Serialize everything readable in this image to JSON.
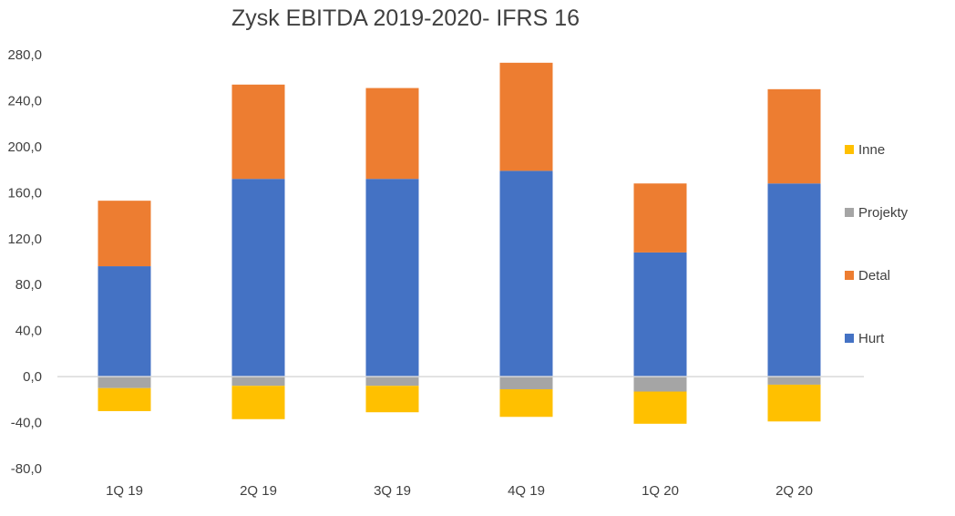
{
  "chart_data": {
    "type": "bar",
    "stacked": true,
    "title": "Zysk EBITDA 2019-2020- IFRS 16",
    "categories": [
      "1Q 19",
      "2Q 19",
      "3Q 19",
      "4Q 19",
      "1Q 20",
      "2Q 20"
    ],
    "series": [
      {
        "name": "Hurt",
        "color": "#4472C4",
        "values": [
          96,
          172,
          172,
          179,
          108,
          168
        ]
      },
      {
        "name": "Detal",
        "color": "#ED7D31",
        "values": [
          57,
          82,
          79,
          94,
          60,
          82
        ]
      },
      {
        "name": "Projekty",
        "color": "#A5A5A5",
        "values": [
          -10,
          -8,
          -8,
          -11,
          -13,
          -7
        ]
      },
      {
        "name": "Inne",
        "color": "#FFC000",
        "values": [
          -20,
          -29,
          -23,
          -24,
          -28,
          -32
        ]
      }
    ],
    "y_ticks": [
      "280,0",
      "240,0",
      "200,0",
      "160,0",
      "120,0",
      "80,0",
      "40,0",
      "0,0",
      "-40,0",
      "-80,0"
    ],
    "ylim": [
      -80,
      280
    ],
    "grid": false,
    "legend_position": "right",
    "legend_order": [
      "Inne",
      "Projekty",
      "Detal",
      "Hurt"
    ]
  }
}
